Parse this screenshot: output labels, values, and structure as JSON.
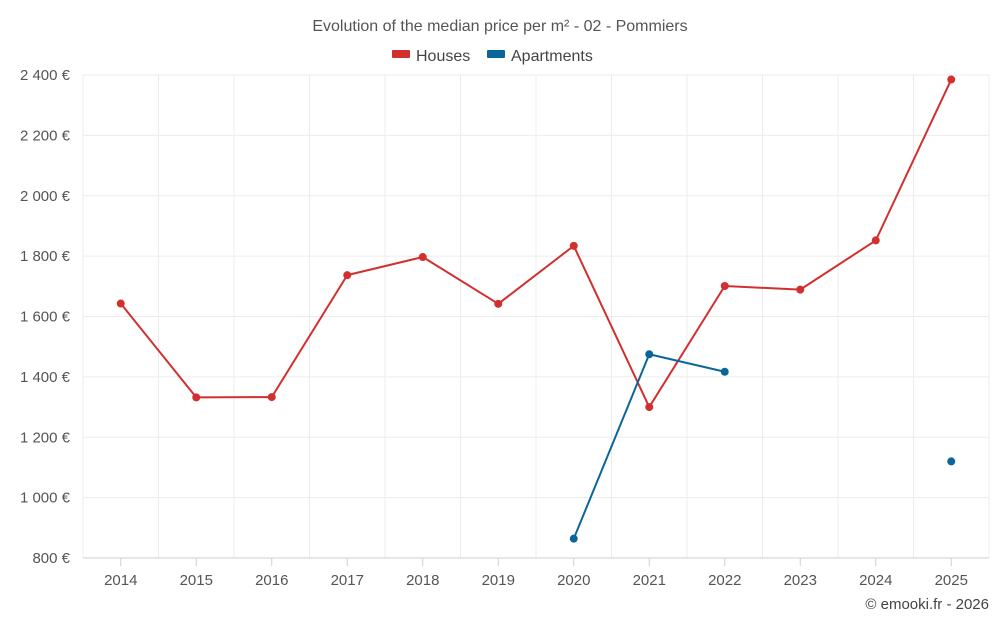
{
  "chart_data": {
    "type": "line",
    "title": "Evolution of the median price per m² - 02 - Pommiers",
    "x": [
      "2014",
      "2015",
      "2016",
      "2017",
      "2018",
      "2019",
      "2020",
      "2021",
      "2022",
      "2023",
      "2024",
      "2025"
    ],
    "ylim": [
      800,
      2400
    ],
    "yticks": [
      800,
      1000,
      1200,
      1400,
      1600,
      1800,
      2000,
      2200,
      2400
    ],
    "ytick_labels": [
      "800 €",
      "1 000 €",
      "1 200 €",
      "1 400 €",
      "1 600 €",
      "1 800 €",
      "2 000 €",
      "2 200 €",
      "2 400 €"
    ],
    "xlabel": "",
    "ylabel": "",
    "grid": true,
    "legend_position": "top-center",
    "series": [
      {
        "name": "Houses",
        "color": "#d32f2f",
        "values": [
          1643,
          1332,
          1333,
          1737,
          1797,
          1642,
          1834,
          1300,
          1701,
          1689,
          1852,
          2385
        ]
      },
      {
        "name": "Apartments",
        "color": "#0a6699",
        "values": [
          null,
          null,
          null,
          null,
          null,
          null,
          864,
          1475,
          1417,
          null,
          null,
          1120
        ]
      }
    ],
    "credit": "© emooki.fr - 2026"
  }
}
